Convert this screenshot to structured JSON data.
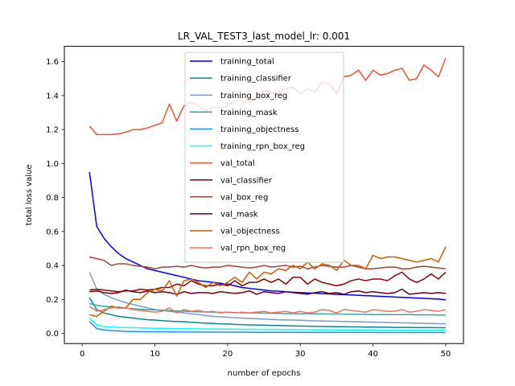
{
  "chart_data": {
    "type": "line",
    "title": "LR_VAL_TEST3_last_model_lr: 0.001",
    "xlabel": "number of epochs",
    "ylabel": "total loss value",
    "xlim": [
      -2.45,
      52.45
    ],
    "ylim": [
      -0.06,
      1.69
    ],
    "xticks": [
      0,
      10,
      20,
      30,
      40,
      50
    ],
    "yticks": [
      0.0,
      0.2,
      0.4,
      0.6,
      0.8,
      1.0,
      1.2,
      1.4,
      1.6
    ],
    "xtick_labels": [
      "0",
      "10",
      "20",
      "30",
      "40",
      "50"
    ],
    "ytick_labels": [
      "0.0",
      "0.2",
      "0.4",
      "0.6",
      "0.8",
      "1.0",
      "1.2",
      "1.4",
      "1.6"
    ],
    "grid": false,
    "legend_position": "top-center",
    "x": [
      1,
      2,
      3,
      4,
      5,
      6,
      7,
      8,
      9,
      10,
      11,
      12,
      13,
      14,
      15,
      16,
      17,
      18,
      19,
      20,
      21,
      22,
      23,
      24,
      25,
      26,
      27,
      28,
      29,
      30,
      31,
      32,
      33,
      34,
      35,
      36,
      37,
      38,
      39,
      40,
      41,
      42,
      43,
      44,
      45,
      46,
      47,
      48,
      49,
      50
    ],
    "series": [
      {
        "name": "training_total",
        "color": "#0000ee",
        "values": [
          0.95,
          0.63,
          0.56,
          0.51,
          0.47,
          0.44,
          0.42,
          0.4,
          0.38,
          0.37,
          0.36,
          0.35,
          0.34,
          0.33,
          0.32,
          0.31,
          0.305,
          0.3,
          0.295,
          0.29,
          0.28,
          0.27,
          0.265,
          0.26,
          0.255,
          0.25,
          0.248,
          0.245,
          0.242,
          0.24,
          0.238,
          0.236,
          0.234,
          0.232,
          0.23,
          0.228,
          0.226,
          0.224,
          0.222,
          0.22,
          0.218,
          0.216,
          0.214,
          0.212,
          0.21,
          0.208,
          0.206,
          0.204,
          0.202,
          0.198
        ]
      },
      {
        "name": "training_classifier",
        "color": "#008b8b",
        "values": [
          0.21,
          0.14,
          0.12,
          0.11,
          0.1,
          0.095,
          0.09,
          0.085,
          0.08,
          0.078,
          0.075,
          0.072,
          0.07,
          0.068,
          0.065,
          0.063,
          0.06,
          0.058,
          0.056,
          0.055,
          0.053,
          0.051,
          0.05,
          0.049,
          0.048,
          0.047,
          0.046,
          0.045,
          0.044,
          0.043,
          0.042,
          0.041,
          0.041,
          0.04,
          0.039,
          0.039,
          0.038,
          0.038,
          0.037,
          0.037,
          0.036,
          0.036,
          0.035,
          0.035,
          0.035,
          0.034,
          0.034,
          0.034,
          0.033,
          0.033
        ]
      },
      {
        "name": "training_box_reg",
        "color": "#7a9cc4",
        "values": [
          0.36,
          0.26,
          0.23,
          0.21,
          0.195,
          0.18,
          0.17,
          0.16,
          0.15,
          0.14,
          0.135,
          0.13,
          0.125,
          0.12,
          0.115,
          0.11,
          0.105,
          0.1,
          0.098,
          0.095,
          0.092,
          0.09,
          0.088,
          0.086,
          0.084,
          0.082,
          0.08,
          0.079,
          0.078,
          0.077,
          0.075,
          0.074,
          0.073,
          0.072,
          0.071,
          0.07,
          0.069,
          0.068,
          0.067,
          0.066,
          0.065,
          0.064,
          0.063,
          0.062,
          0.061,
          0.06,
          0.059,
          0.058,
          0.057,
          0.056
        ]
      },
      {
        "name": "training_mask",
        "color": "#3aa4a4",
        "values": [
          0.175,
          0.165,
          0.16,
          0.155,
          0.15,
          0.148,
          0.145,
          0.142,
          0.14,
          0.138,
          0.136,
          0.134,
          0.132,
          0.13,
          0.128,
          0.127,
          0.126,
          0.125,
          0.124,
          0.123,
          0.122,
          0.121,
          0.12,
          0.12,
          0.119,
          0.118,
          0.118,
          0.117,
          0.117,
          0.116,
          0.116,
          0.115,
          0.115,
          0.114,
          0.114,
          0.113,
          0.113,
          0.112,
          0.112,
          0.111,
          0.111,
          0.111,
          0.11,
          0.11,
          0.11,
          0.109,
          0.109,
          0.109,
          0.108,
          0.108
        ]
      },
      {
        "name": "training_objectness",
        "color": "#1e8fff",
        "values": [
          0.07,
          0.028,
          0.02,
          0.016,
          0.014,
          0.012,
          0.011,
          0.01,
          0.0095,
          0.009,
          0.0088,
          0.0085,
          0.0083,
          0.008,
          0.0078,
          0.0076,
          0.0074,
          0.0072,
          0.007,
          0.0068,
          0.0066,
          0.0065,
          0.0064,
          0.0063,
          0.0062,
          0.0061,
          0.006,
          0.0059,
          0.0058,
          0.0057,
          0.0056,
          0.0055,
          0.0055,
          0.0054,
          0.0054,
          0.0053,
          0.0053,
          0.0052,
          0.0052,
          0.0051,
          0.0051,
          0.005,
          0.005,
          0.005,
          0.0049,
          0.0049,
          0.0049,
          0.0048,
          0.0048,
          0.0048
        ]
      },
      {
        "name": "training_rpn_box_reg",
        "color": "#00ffff",
        "values": [
          0.09,
          0.05,
          0.04,
          0.037,
          0.035,
          0.034,
          0.033,
          0.032,
          0.031,
          0.03,
          0.029,
          0.029,
          0.028,
          0.028,
          0.027,
          0.027,
          0.026,
          0.026,
          0.025,
          0.025,
          0.025,
          0.024,
          0.024,
          0.024,
          0.023,
          0.023,
          0.023,
          0.022,
          0.022,
          0.022,
          0.022,
          0.021,
          0.021,
          0.021,
          0.021,
          0.02,
          0.02,
          0.02,
          0.02,
          0.02,
          0.019,
          0.019,
          0.019,
          0.019,
          0.019,
          0.019,
          0.018,
          0.018,
          0.018,
          0.018
        ]
      },
      {
        "name": "val_total",
        "color": "#e8543a",
        "values": [
          1.22,
          1.17,
          1.17,
          1.17,
          1.175,
          1.185,
          1.2,
          1.2,
          1.21,
          1.225,
          1.24,
          1.35,
          1.25,
          1.34,
          1.36,
          1.34,
          1.31,
          1.33,
          1.33,
          1.34,
          1.37,
          1.37,
          1.36,
          1.39,
          1.43,
          1.41,
          1.42,
          1.44,
          1.45,
          1.41,
          1.44,
          1.42,
          1.48,
          1.47,
          1.41,
          1.51,
          1.52,
          1.55,
          1.49,
          1.55,
          1.52,
          1.53,
          1.55,
          1.56,
          1.49,
          1.5,
          1.58,
          1.55,
          1.51,
          1.62
        ]
      },
      {
        "name": "val_classifier",
        "color": "#8b0000",
        "values": [
          0.255,
          0.26,
          0.255,
          0.25,
          0.245,
          0.25,
          0.25,
          0.26,
          0.255,
          0.26,
          0.27,
          0.27,
          0.29,
          0.28,
          0.31,
          0.29,
          0.28,
          0.28,
          0.29,
          0.28,
          0.31,
          0.28,
          0.3,
          0.3,
          0.32,
          0.3,
          0.32,
          0.29,
          0.33,
          0.33,
          0.29,
          0.32,
          0.3,
          0.29,
          0.28,
          0.29,
          0.31,
          0.32,
          0.31,
          0.32,
          0.32,
          0.31,
          0.34,
          0.36,
          0.32,
          0.3,
          0.32,
          0.35,
          0.32,
          0.36
        ]
      },
      {
        "name": "val_box_reg",
        "color": "#a0443a",
        "values": [
          0.45,
          0.44,
          0.43,
          0.4,
          0.41,
          0.41,
          0.4,
          0.395,
          0.39,
          0.38,
          0.39,
          0.39,
          0.395,
          0.39,
          0.4,
          0.39,
          0.385,
          0.39,
          0.39,
          0.4,
          0.395,
          0.39,
          0.385,
          0.39,
          0.4,
          0.39,
          0.395,
          0.4,
          0.39,
          0.395,
          0.38,
          0.39,
          0.4,
          0.395,
          0.39,
          0.39,
          0.4,
          0.39,
          0.38,
          0.38,
          0.385,
          0.39,
          0.39,
          0.38,
          0.38,
          0.39,
          0.395,
          0.39,
          0.385,
          0.38
        ]
      },
      {
        "name": "val_mask",
        "color": "#6a0018",
        "values": [
          0.245,
          0.25,
          0.24,
          0.235,
          0.24,
          0.255,
          0.245,
          0.24,
          0.25,
          0.24,
          0.245,
          0.24,
          0.23,
          0.245,
          0.235,
          0.24,
          0.24,
          0.235,
          0.245,
          0.24,
          0.235,
          0.24,
          0.25,
          0.23,
          0.245,
          0.24,
          0.235,
          0.245,
          0.24,
          0.235,
          0.23,
          0.24,
          0.245,
          0.235,
          0.24,
          0.23,
          0.245,
          0.25,
          0.24,
          0.245,
          0.24,
          0.235,
          0.24,
          0.26,
          0.23,
          0.235,
          0.24,
          0.235,
          0.24,
          0.235
        ]
      },
      {
        "name": "val_objectness",
        "color": "#cd5c00",
        "values": [
          0.11,
          0.1,
          0.13,
          0.16,
          0.15,
          0.15,
          0.2,
          0.2,
          0.24,
          0.26,
          0.25,
          0.31,
          0.22,
          0.31,
          0.32,
          0.3,
          0.27,
          0.3,
          0.28,
          0.3,
          0.33,
          0.3,
          0.36,
          0.32,
          0.36,
          0.35,
          0.38,
          0.37,
          0.4,
          0.38,
          0.42,
          0.38,
          0.41,
          0.4,
          0.37,
          0.43,
          0.4,
          0.4,
          0.38,
          0.46,
          0.44,
          0.45,
          0.45,
          0.44,
          0.43,
          0.42,
          0.43,
          0.44,
          0.42,
          0.51
        ]
      },
      {
        "name": "val_rpn_box_reg",
        "color": "#e87560",
        "values": [
          0.16,
          0.13,
          0.14,
          0.15,
          0.155,
          0.15,
          0.14,
          0.135,
          0.13,
          0.125,
          0.13,
          0.15,
          0.12,
          0.14,
          0.13,
          0.135,
          0.125,
          0.13,
          0.12,
          0.125,
          0.12,
          0.125,
          0.12,
          0.125,
          0.13,
          0.12,
          0.125,
          0.13,
          0.12,
          0.13,
          0.12,
          0.125,
          0.14,
          0.135,
          0.12,
          0.14,
          0.135,
          0.13,
          0.125,
          0.14,
          0.135,
          0.13,
          0.13,
          0.14,
          0.125,
          0.13,
          0.14,
          0.135,
          0.13,
          0.14
        ]
      }
    ]
  }
}
